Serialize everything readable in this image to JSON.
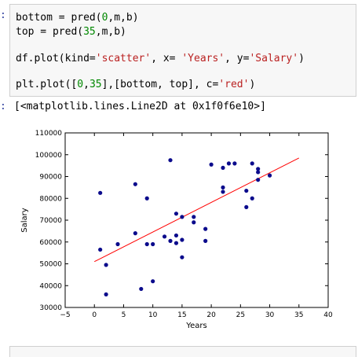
{
  "input_cell": {
    "prompt": ":",
    "lines": [
      {
        "parts": [
          {
            "t": "bottom = pred(",
            "c": ""
          },
          {
            "t": "0",
            "c": "num"
          },
          {
            "t": ",m,b)",
            "c": ""
          }
        ]
      },
      {
        "parts": [
          {
            "t": "top = pred(",
            "c": ""
          },
          {
            "t": "35",
            "c": "num"
          },
          {
            "t": ",m,b)",
            "c": ""
          }
        ]
      },
      {
        "parts": [
          {
            "t": "df.plot(kind=",
            "c": ""
          },
          {
            "t": "'scatter'",
            "c": "str"
          },
          {
            "t": ", x= ",
            "c": ""
          },
          {
            "t": "'Years'",
            "c": "str"
          },
          {
            "t": ", y=",
            "c": ""
          },
          {
            "t": "'Salary'",
            "c": "str"
          },
          {
            "t": ")",
            "c": ""
          }
        ]
      },
      {
        "parts": [
          {
            "t": "plt.plot([",
            "c": ""
          },
          {
            "t": "0",
            "c": "num"
          },
          {
            "t": ",",
            "c": ""
          },
          {
            "t": "35",
            "c": "num"
          },
          {
            "t": "],[bottom, top], c=",
            "c": ""
          },
          {
            "t": "'red'",
            "c": "str"
          },
          {
            "t": ")",
            "c": ""
          }
        ]
      }
    ]
  },
  "output_cell": {
    "prompt": ":",
    "text": "[<matplotlib.lines.Line2D at 0x1f0f6e10>]"
  },
  "colors": {
    "prompt": "#303f9f",
    "marker": "#0b0b8c",
    "fit_line": "#ff0000",
    "cell_bg": "#f7f7f7"
  },
  "chart_data": {
    "type": "scatter",
    "title": "",
    "xlabel": "Years",
    "ylabel": "Salary",
    "xlim": [
      -5,
      40
    ],
    "ylim": [
      30000,
      110000
    ],
    "xticks": [
      -5,
      0,
      5,
      10,
      15,
      20,
      25,
      30,
      35,
      40
    ],
    "yticks": [
      30000,
      40000,
      50000,
      60000,
      70000,
      80000,
      90000,
      100000,
      110000
    ],
    "grid": false,
    "points": [
      [
        1,
        82500
      ],
      [
        1,
        56500
      ],
      [
        2,
        49500
      ],
      [
        2,
        36000
      ],
      [
        4,
        59000
      ],
      [
        7,
        86500
      ],
      [
        7,
        64000
      ],
      [
        8,
        38500
      ],
      [
        9,
        80000
      ],
      [
        9,
        59000
      ],
      [
        10,
        59000
      ],
      [
        10,
        42000
      ],
      [
        12,
        62500
      ],
      [
        13,
        97500
      ],
      [
        13,
        60500
      ],
      [
        14,
        73000
      ],
      [
        14,
        63000
      ],
      [
        14,
        59500
      ],
      [
        15,
        71500
      ],
      [
        15,
        61000
      ],
      [
        15,
        53000
      ],
      [
        17,
        71500
      ],
      [
        17,
        69000
      ],
      [
        19,
        66000
      ],
      [
        19,
        60500
      ],
      [
        20,
        95500
      ],
      [
        22,
        94000
      ],
      [
        22,
        85000
      ],
      [
        22,
        83000
      ],
      [
        23,
        96000
      ],
      [
        24,
        96000
      ],
      [
        26,
        83500
      ],
      [
        26,
        76000
      ],
      [
        27,
        96000
      ],
      [
        27,
        80000
      ],
      [
        28,
        93500
      ],
      [
        28,
        92000
      ],
      [
        28,
        88500
      ],
      [
        30,
        90500
      ]
    ],
    "fit_line": {
      "x": [
        0,
        35
      ],
      "y": [
        51000,
        98500
      ]
    }
  }
}
